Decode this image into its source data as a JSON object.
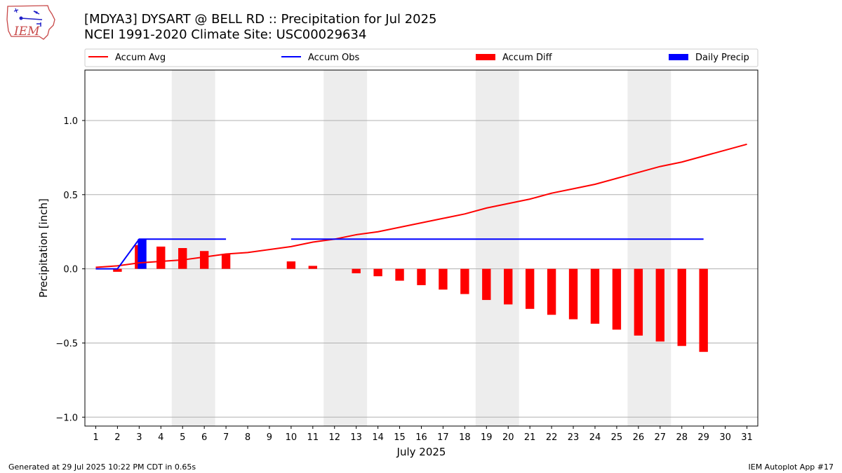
{
  "logo": {
    "text": "IEM"
  },
  "title_line1": "[MDYA3] DYSART @ BELL RD :: Precipitation for Jul 2025",
  "title_line2": "NCEI 1991-2020 Climate Site: USC00029634",
  "footer_left": "Generated at 29 Jul 2025 10:22 PM CDT in 0.65s",
  "footer_right": "IEM Autoplot App #17",
  "colors": {
    "avg": "#ff0000",
    "obs": "#0000ff",
    "diff": "#ff0000",
    "daily": "#0000ff",
    "weekend": "#ededed",
    "grid": "#b0b0b0"
  },
  "chart_data": {
    "type": "bar",
    "xlabel": "July 2025",
    "ylabel": "Precipitation [inch]",
    "xlim": [
      0.5,
      31.5
    ],
    "ylim": [
      -1.06,
      1.34
    ],
    "yticks": [
      -1.0,
      -0.5,
      0.0,
      0.5,
      1.0
    ],
    "ytick_labels": [
      "−1.0",
      "−0.5",
      "0.0",
      "0.5",
      "1.0"
    ],
    "xticks": [
      1,
      2,
      3,
      4,
      5,
      6,
      7,
      8,
      9,
      10,
      11,
      12,
      13,
      14,
      15,
      16,
      17,
      18,
      19,
      20,
      21,
      22,
      23,
      24,
      25,
      26,
      27,
      28,
      29,
      30,
      31
    ],
    "grid": "horizontal",
    "legend_position": "top",
    "weekend_bands": [
      [
        4.5,
        6.5
      ],
      [
        11.5,
        13.5
      ],
      [
        18.5,
        20.5
      ],
      [
        25.5,
        27.5
      ]
    ],
    "series": [
      {
        "name": "Accum Avg",
        "kind": "line",
        "x": [
          1,
          2,
          3,
          4,
          5,
          6,
          7,
          8,
          9,
          10,
          11,
          12,
          13,
          14,
          15,
          16,
          17,
          18,
          19,
          20,
          21,
          22,
          23,
          24,
          25,
          26,
          27,
          28,
          29,
          30,
          31
        ],
        "values": [
          0.01,
          0.02,
          0.04,
          0.05,
          0.06,
          0.08,
          0.1,
          0.11,
          0.13,
          0.15,
          0.18,
          0.2,
          0.23,
          0.25,
          0.28,
          0.31,
          0.34,
          0.37,
          0.41,
          0.44,
          0.47,
          0.51,
          0.54,
          0.57,
          0.61,
          0.65,
          0.69,
          0.72,
          0.76,
          0.8,
          0.84
        ]
      },
      {
        "name": "Accum Obs",
        "kind": "line",
        "segments": [
          {
            "x": [
              1,
              2,
              3,
              4,
              5,
              6,
              7
            ],
            "values": [
              0.0,
              0.0,
              0.2,
              0.2,
              0.2,
              0.2,
              0.2
            ]
          },
          {
            "x": [
              10,
              11,
              12,
              13,
              14,
              15,
              16,
              17,
              18,
              19,
              20,
              21,
              22,
              23,
              24,
              25,
              26,
              27,
              28,
              29
            ],
            "values": [
              0.2,
              0.2,
              0.2,
              0.2,
              0.2,
              0.2,
              0.2,
              0.2,
              0.2,
              0.2,
              0.2,
              0.2,
              0.2,
              0.2,
              0.2,
              0.2,
              0.2,
              0.2,
              0.2,
              0.2
            ]
          }
        ]
      },
      {
        "name": "Accum Diff",
        "kind": "bar",
        "x": [
          1,
          2,
          3,
          4,
          5,
          6,
          7,
          10,
          11,
          13,
          14,
          15,
          16,
          17,
          18,
          19,
          20,
          21,
          22,
          23,
          24,
          25,
          26,
          27,
          28,
          29
        ],
        "values": [
          0.0,
          -0.02,
          0.16,
          0.15,
          0.14,
          0.12,
          0.1,
          0.05,
          0.02,
          -0.03,
          -0.05,
          -0.08,
          -0.11,
          -0.14,
          -0.17,
          -0.21,
          -0.24,
          -0.27,
          -0.31,
          -0.34,
          -0.37,
          -0.41,
          -0.45,
          -0.49,
          -0.52,
          -0.56
        ]
      },
      {
        "name": "Daily Precip",
        "kind": "bar",
        "x": [
          3
        ],
        "values": [
          0.2
        ]
      }
    ]
  }
}
